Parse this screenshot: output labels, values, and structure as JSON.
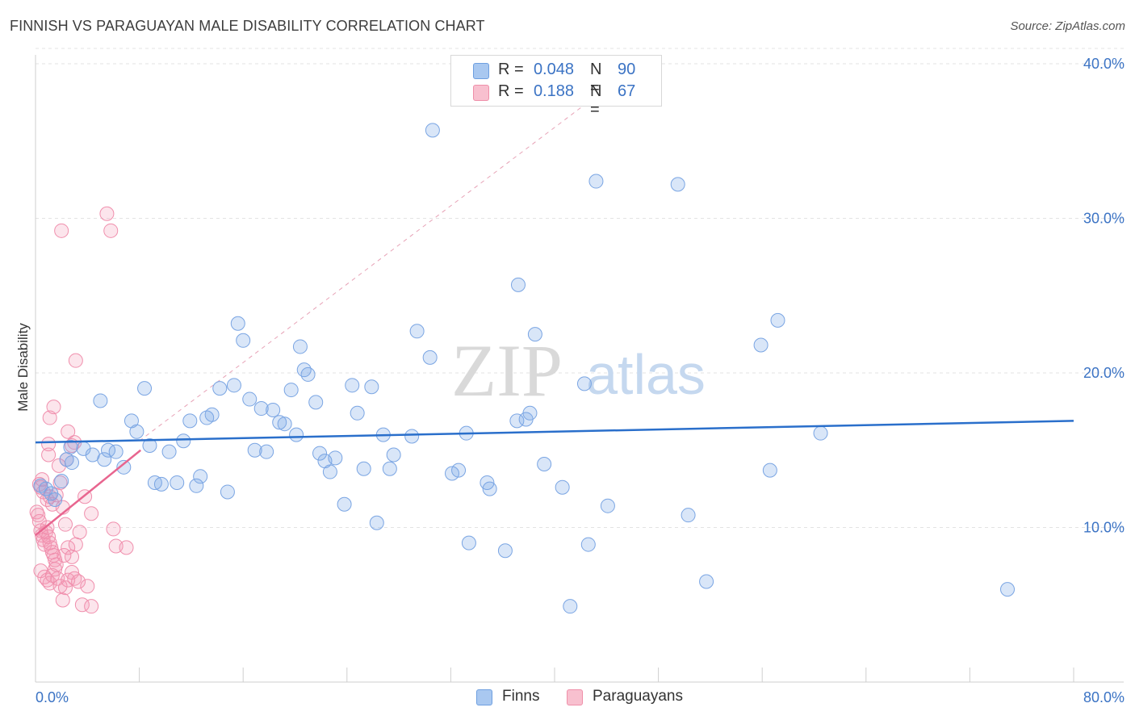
{
  "header": {
    "title": "FINNISH VS PARAGUAYAN MALE DISABILITY CORRELATION CHART",
    "source": "Source: ZipAtlas.com"
  },
  "watermark": {
    "zip": "ZIP",
    "atlas": "atlas"
  },
  "legend": {
    "rows": [
      {
        "name": "Finns",
        "r_label": "R =",
        "r_value": "0.048",
        "n_label": "N =",
        "n_value": "90",
        "color": "#a9c8f0",
        "border": "#6e9fe0"
      },
      {
        "name": "Paraguayans",
        "r_label": "R =",
        "r_value": "0.188",
        "n_label": "N =",
        "n_value": "67",
        "color": "#f8c0cf",
        "border": "#ef8fa9"
      }
    ]
  },
  "colors": {
    "finns_fill": "rgba(120,165,230,0.28)",
    "finns_stroke": "#7aa5e3",
    "finns_line": "#2a6fcb",
    "para_fill": "rgba(245,150,180,0.25)",
    "para_stroke": "#f08fad",
    "para_line": "#e8658f",
    "diag": "#e7a2b6",
    "grid": "#e3e3e3",
    "axis_label": "#3b73c4"
  },
  "chart_data": {
    "type": "scatter",
    "title": "FINNISH VS PARAGUAYAN MALE DISABILITY CORRELATION CHART",
    "xlabel": "",
    "ylabel": "Male Disability",
    "xlim": [
      0,
      80
    ],
    "ylim": [
      0,
      40
    ],
    "x_tick_labels": [
      "0.0%",
      "80.0%"
    ],
    "y_ticks": [
      10,
      20,
      30,
      40
    ],
    "y_tick_labels": [
      "10.0%",
      "20.0%",
      "30.0%",
      "40.0%"
    ],
    "series": [
      {
        "name": "Finns",
        "R": 0.048,
        "N": 90,
        "trend": {
          "x": [
            0,
            80
          ],
          "y": [
            15.5,
            16.9
          ]
        },
        "points": [
          [
            0.4,
            12.7
          ],
          [
            0.8,
            12.5
          ],
          [
            1.2,
            12.2
          ],
          [
            1.5,
            11.8
          ],
          [
            2.0,
            13.0
          ],
          [
            2.4,
            14.4
          ],
          [
            2.8,
            14.2
          ],
          [
            2.7,
            15.2
          ],
          [
            3.7,
            15.1
          ],
          [
            4.4,
            14.7
          ],
          [
            5.0,
            18.2
          ],
          [
            5.3,
            14.4
          ],
          [
            5.6,
            15.0
          ],
          [
            6.2,
            14.9
          ],
          [
            6.8,
            13.9
          ],
          [
            7.4,
            16.9
          ],
          [
            7.8,
            16.2
          ],
          [
            8.4,
            19.0
          ],
          [
            8.8,
            15.3
          ],
          [
            9.2,
            12.9
          ],
          [
            9.7,
            12.8
          ],
          [
            10.3,
            14.9
          ],
          [
            10.9,
            12.9
          ],
          [
            11.4,
            15.6
          ],
          [
            11.9,
            16.9
          ],
          [
            12.4,
            12.7
          ],
          [
            12.7,
            13.3
          ],
          [
            13.2,
            17.1
          ],
          [
            13.6,
            17.3
          ],
          [
            14.2,
            19.0
          ],
          [
            14.8,
            12.3
          ],
          [
            15.3,
            19.2
          ],
          [
            15.6,
            23.2
          ],
          [
            16.0,
            22.1
          ],
          [
            16.5,
            18.3
          ],
          [
            16.9,
            15.0
          ],
          [
            17.4,
            17.7
          ],
          [
            17.8,
            14.9
          ],
          [
            18.3,
            17.6
          ],
          [
            18.8,
            16.8
          ],
          [
            19.2,
            16.7
          ],
          [
            19.7,
            18.9
          ],
          [
            20.1,
            16.0
          ],
          [
            20.4,
            21.7
          ],
          [
            20.7,
            20.2
          ],
          [
            21.0,
            19.9
          ],
          [
            21.6,
            18.1
          ],
          [
            21.9,
            14.8
          ],
          [
            22.3,
            14.3
          ],
          [
            22.7,
            13.6
          ],
          [
            23.1,
            14.5
          ],
          [
            23.8,
            11.5
          ],
          [
            24.4,
            19.2
          ],
          [
            24.8,
            17.4
          ],
          [
            25.3,
            13.8
          ],
          [
            25.9,
            19.1
          ],
          [
            26.3,
            10.3
          ],
          [
            26.8,
            16.0
          ],
          [
            27.3,
            13.8
          ],
          [
            27.6,
            14.7
          ],
          [
            29.0,
            15.9
          ],
          [
            29.4,
            22.7
          ],
          [
            30.4,
            21.0
          ],
          [
            30.6,
            35.7
          ],
          [
            32.1,
            13.5
          ],
          [
            32.6,
            13.7
          ],
          [
            33.2,
            16.1
          ],
          [
            34.8,
            12.9
          ],
          [
            35.0,
            12.5
          ],
          [
            33.4,
            9.0
          ],
          [
            36.2,
            8.5
          ],
          [
            37.1,
            16.9
          ],
          [
            37.2,
            25.7
          ],
          [
            37.8,
            17.0
          ],
          [
            38.1,
            17.4
          ],
          [
            38.5,
            22.5
          ],
          [
            39.2,
            14.1
          ],
          [
            40.6,
            12.6
          ],
          [
            41.2,
            4.9
          ],
          [
            42.3,
            19.3
          ],
          [
            42.6,
            8.9
          ],
          [
            43.2,
            32.4
          ],
          [
            44.1,
            11.4
          ],
          [
            50.3,
            10.8
          ],
          [
            49.5,
            32.2
          ],
          [
            51.7,
            6.5
          ],
          [
            55.9,
            21.8
          ],
          [
            57.2,
            23.4
          ],
          [
            56.6,
            13.7
          ],
          [
            60.5,
            16.1
          ],
          [
            74.9,
            6.0
          ]
        ]
      },
      {
        "name": "Paraguayans",
        "R": 0.188,
        "N": 67,
        "trend": {
          "x": [
            0,
            8.1
          ],
          "y": [
            9.5,
            15.0
          ]
        },
        "points": [
          [
            0.1,
            11.0
          ],
          [
            0.2,
            10.8
          ],
          [
            0.3,
            10.4
          ],
          [
            0.4,
            9.8
          ],
          [
            0.5,
            9.5
          ],
          [
            0.6,
            9.2
          ],
          [
            0.7,
            8.9
          ],
          [
            0.8,
            9.7
          ],
          [
            0.9,
            10.0
          ],
          [
            1.0,
            9.4
          ],
          [
            1.1,
            9.0
          ],
          [
            1.2,
            8.7
          ],
          [
            1.3,
            8.4
          ],
          [
            1.4,
            8.2
          ],
          [
            1.5,
            7.9
          ],
          [
            1.6,
            7.6
          ],
          [
            0.3,
            12.8
          ],
          [
            0.5,
            13.1
          ],
          [
            0.6,
            12.3
          ],
          [
            0.9,
            11.8
          ],
          [
            1.1,
            12.0
          ],
          [
            1.3,
            11.5
          ],
          [
            1.6,
            12.1
          ],
          [
            1.9,
            12.9
          ],
          [
            2.1,
            11.3
          ],
          [
            2.3,
            10.2
          ],
          [
            0.4,
            7.2
          ],
          [
            0.7,
            6.8
          ],
          [
            0.9,
            6.6
          ],
          [
            1.1,
            6.4
          ],
          [
            1.3,
            6.9
          ],
          [
            1.5,
            7.3
          ],
          [
            1.7,
            6.7
          ],
          [
            1.9,
            6.2
          ],
          [
            2.1,
            5.3
          ],
          [
            2.3,
            6.1
          ],
          [
            2.5,
            6.6
          ],
          [
            2.8,
            7.1
          ],
          [
            3.0,
            6.7
          ],
          [
            3.3,
            6.5
          ],
          [
            3.6,
            5.0
          ],
          [
            4.0,
            6.2
          ],
          [
            4.3,
            4.9
          ],
          [
            2.2,
            8.2
          ],
          [
            2.5,
            8.7
          ],
          [
            2.8,
            8.1
          ],
          [
            3.1,
            8.9
          ],
          [
            3.4,
            9.7
          ],
          [
            3.8,
            12.0
          ],
          [
            4.3,
            10.9
          ],
          [
            2.4,
            14.4
          ],
          [
            2.8,
            15.3
          ],
          [
            3.0,
            15.5
          ],
          [
            2.5,
            16.2
          ],
          [
            1.0,
            15.4
          ],
          [
            1.0,
            14.7
          ],
          [
            1.1,
            17.1
          ],
          [
            1.4,
            17.8
          ],
          [
            1.8,
            14.0
          ],
          [
            3.1,
            20.8
          ],
          [
            2.0,
            29.2
          ],
          [
            5.5,
            30.3
          ],
          [
            5.8,
            29.2
          ],
          [
            6.0,
            9.9
          ],
          [
            6.2,
            8.8
          ],
          [
            7.0,
            8.7
          ],
          [
            0.4,
            12.6
          ]
        ]
      }
    ],
    "reference_line": {
      "style": "dashed",
      "x": [
        8,
        46.5
      ],
      "y": [
        15.6,
        40.0
      ]
    }
  }
}
